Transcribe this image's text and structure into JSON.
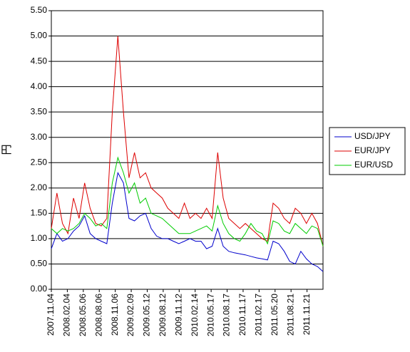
{
  "chart_data": {
    "type": "line",
    "ylabel": "円",
    "ylim": [
      0,
      5.5
    ],
    "yticks": [
      "0.00",
      "0.50",
      "1.00",
      "1.50",
      "2.00",
      "2.50",
      "3.00",
      "3.50",
      "4.00",
      "4.50",
      "5.00",
      "5.50"
    ],
    "xticks": [
      "2007.11.04",
      "2008.02.04",
      "2008.05.06",
      "2008.08.06",
      "2008.11.06",
      "2009.02.09",
      "2009.05.12",
      "2009.08.12",
      "2009.11.12",
      "2010.02.14",
      "2010.05.17",
      "2010.08.17",
      "2010.11.17",
      "2011.02.17",
      "2011.05.20",
      "2011.08.21",
      "2011.11.21"
    ],
    "grid": "horizontal",
    "legend_position": "right",
    "x": [
      "2007.11.04",
      "2007.12.04",
      "2008.01.04",
      "2008.02.04",
      "2008.03.05",
      "2008.04.05",
      "2008.05.06",
      "2008.06.06",
      "2008.07.06",
      "2008.08.06",
      "2008.09.06",
      "2008.10.06",
      "2008.11.06",
      "2008.12.07",
      "2009.01.07",
      "2009.02.09",
      "2009.03.12",
      "2009.04.12",
      "2009.05.12",
      "2009.06.12",
      "2009.07.12",
      "2009.08.12",
      "2009.09.12",
      "2009.10.12",
      "2009.11.12",
      "2009.12.13",
      "2010.01.13",
      "2010.02.14",
      "2010.03.15",
      "2010.04.15",
      "2010.05.17",
      "2010.06.17",
      "2010.07.17",
      "2010.08.17",
      "2010.09.17",
      "2010.10.17",
      "2010.11.17",
      "2010.12.17",
      "2011.01.17",
      "2011.02.17",
      "2011.03.20",
      "2011.04.20",
      "2011.05.20",
      "2011.06.20",
      "2011.07.20",
      "2011.08.21",
      "2011.09.21",
      "2011.10.21",
      "2011.11.21",
      "2011.12.21"
    ],
    "series": [
      {
        "name": "USD/JPY",
        "color": "#0000cc",
        "values": [
          0.8,
          1.1,
          0.95,
          1.0,
          1.15,
          1.25,
          1.45,
          1.1,
          1.0,
          0.95,
          0.9,
          1.7,
          2.3,
          2.1,
          1.4,
          1.35,
          1.45,
          1.5,
          1.2,
          1.05,
          1.0,
          1.0,
          0.95,
          0.9,
          0.95,
          1.0,
          0.95,
          0.95,
          0.8,
          0.85,
          1.2,
          0.85,
          0.75,
          0.72,
          0.7,
          0.68,
          0.65,
          0.62,
          0.6,
          0.58,
          0.95,
          0.9,
          0.75,
          0.55,
          0.5,
          0.75,
          0.6,
          0.5,
          0.45,
          0.35
        ]
      },
      {
        "name": "EUR/JPY",
        "color": "#dd0000",
        "values": [
          1.2,
          1.9,
          1.3,
          1.1,
          1.8,
          1.4,
          2.1,
          1.6,
          1.3,
          1.25,
          1.4,
          3.5,
          5.0,
          3.5,
          2.2,
          2.7,
          2.2,
          2.3,
          2.0,
          1.9,
          1.8,
          1.6,
          1.5,
          1.4,
          1.7,
          1.4,
          1.5,
          1.4,
          1.6,
          1.4,
          2.7,
          1.8,
          1.4,
          1.3,
          1.2,
          1.3,
          1.2,
          1.1,
          1.0,
          0.95,
          1.7,
          1.6,
          1.4,
          1.3,
          1.6,
          1.5,
          1.3,
          1.5,
          1.3,
          0.85
        ]
      },
      {
        "name": "EUR/USD",
        "color": "#00cc00",
        "values": [
          1.2,
          1.1,
          1.2,
          1.15,
          1.2,
          1.3,
          1.5,
          1.4,
          1.25,
          1.3,
          1.2,
          2.1,
          2.6,
          2.3,
          1.9,
          2.1,
          1.7,
          1.8,
          1.5,
          1.45,
          1.4,
          1.3,
          1.2,
          1.1,
          1.1,
          1.1,
          1.15,
          1.2,
          1.25,
          1.15,
          1.65,
          1.3,
          1.1,
          1.0,
          0.95,
          1.1,
          1.3,
          1.15,
          1.1,
          0.9,
          1.35,
          1.3,
          1.15,
          1.1,
          1.3,
          1.2,
          1.1,
          1.25,
          1.2,
          0.85
        ]
      }
    ]
  }
}
